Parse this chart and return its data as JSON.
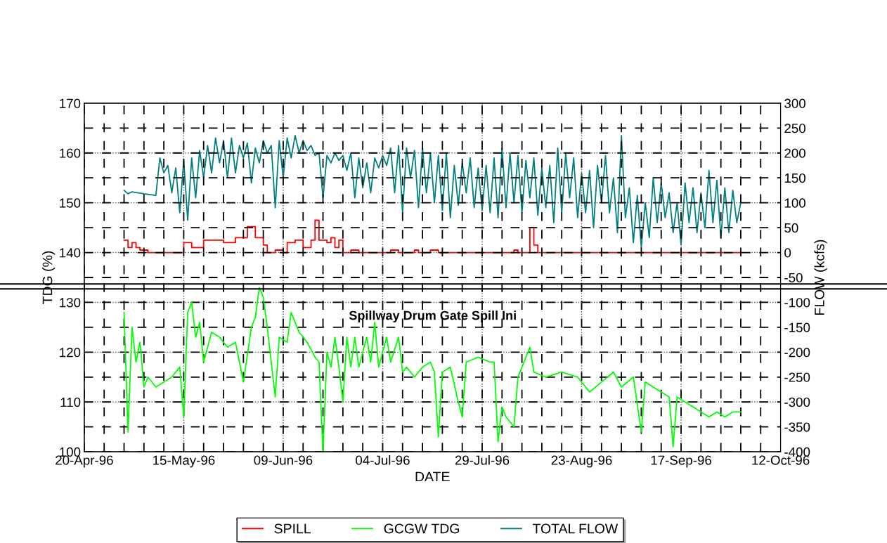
{
  "chart_data": {
    "type": "line",
    "xlabel": "DATE",
    "ylabel": "TDG (%)",
    "y2label": "FLOW (kcfs)",
    "xlim": [
      "1996-04-20",
      "1996-10-12"
    ],
    "xticks": [
      {
        "value": "1996-04-20",
        "label": "20-Apr-96"
      },
      {
        "value": "1996-05-15",
        "label": "15-May-96"
      },
      {
        "value": "1996-06-09",
        "label": "09-Jun-96"
      },
      {
        "value": "1996-07-04",
        "label": "04-Jul-96"
      },
      {
        "value": "1996-07-29",
        "label": "29-Jul-96"
      },
      {
        "value": "1996-08-23",
        "label": "23-Aug-96"
      },
      {
        "value": "1996-09-17",
        "label": "17-Sep-96"
      },
      {
        "value": "1996-10-12",
        "label": "12-Oct-96"
      }
    ],
    "ylim": [
      100,
      170
    ],
    "yticks": [
      100,
      110,
      120,
      130,
      140,
      150,
      160,
      170
    ],
    "y2lim": [
      -400,
      300
    ],
    "y2ticks": [
      -400,
      -350,
      -300,
      -250,
      -200,
      -150,
      -100,
      -50,
      0,
      50,
      100,
      150,
      200,
      250,
      300
    ],
    "grid": true,
    "legend": "bottom",
    "annotations": [
      "Spillway Drum Gate Spill Ini"
    ],
    "ref_lines": [
      {
        "axis": "y",
        "value": 133.7,
        "color": "#000000"
      },
      {
        "axis": "y",
        "value": 132.7,
        "color": "#000000"
      }
    ],
    "series": [
      {
        "name": "SPILL",
        "color": "#ff0000",
        "axis": "y2",
        "type": "step",
        "x": [
          "1996-04-30",
          "1996-05-01",
          "1996-05-02",
          "1996-05-03",
          "1996-05-04",
          "1996-05-05",
          "1996-05-06",
          "1996-05-14",
          "1996-05-15",
          "1996-05-17",
          "1996-05-20",
          "1996-05-25",
          "1996-05-28",
          "1996-05-31",
          "1996-06-02",
          "1996-06-04",
          "1996-06-05",
          "1996-06-07",
          "1996-06-09",
          "1996-06-10",
          "1996-06-12",
          "1996-06-14",
          "1996-06-16",
          "1996-06-17",
          "1996-06-18",
          "1996-06-20",
          "1996-06-21",
          "1996-06-22",
          "1996-06-23",
          "1996-06-24",
          "1996-06-26",
          "1996-06-28",
          "1996-07-06",
          "1996-07-08",
          "1996-07-12",
          "1996-07-13",
          "1996-07-16",
          "1996-07-18",
          "1996-08-06",
          "1996-08-07",
          "1996-08-10",
          "1996-08-11",
          "1996-08-12",
          "1996-10-02"
        ],
        "values": [
          25,
          10,
          20,
          10,
          5,
          5,
          0,
          0,
          20,
          10,
          25,
          20,
          30,
          52,
          30,
          15,
          0,
          5,
          0,
          20,
          25,
          10,
          25,
          65,
          25,
          20,
          30,
          10,
          25,
          0,
          5,
          0,
          5,
          0,
          5,
          0,
          5,
          0,
          5,
          0,
          50,
          15,
          0,
          0
        ]
      },
      {
        "name": "GCGW TDG",
        "color": "#00ff00",
        "axis": "y",
        "x": [
          "1996-04-30",
          "1996-05-01",
          "1996-05-02",
          "1996-05-03",
          "1996-05-04",
          "1996-05-05",
          "1996-05-06",
          "1996-05-08",
          "1996-05-12",
          "1996-05-14",
          "1996-05-15",
          "1996-05-16",
          "1996-05-17",
          "1996-05-18",
          "1996-05-19",
          "1996-05-20",
          "1996-05-22",
          "1996-05-24",
          "1996-05-26",
          "1996-05-28",
          "1996-05-30",
          "1996-06-01",
          "1996-06-02",
          "1996-06-03",
          "1996-06-04",
          "1996-06-05",
          "1996-06-06",
          "1996-06-07",
          "1996-06-08",
          "1996-06-10",
          "1996-06-11",
          "1996-06-12",
          "1996-06-13",
          "1996-06-15",
          "1996-06-17",
          "1996-06-18",
          "1996-06-19",
          "1996-06-20",
          "1996-06-21",
          "1996-06-22",
          "1996-06-23",
          "1996-06-24",
          "1996-06-25",
          "1996-06-26",
          "1996-06-27",
          "1996-06-28",
          "1996-06-30",
          "1996-07-01",
          "1996-07-02",
          "1996-07-03",
          "1996-07-05",
          "1996-07-06",
          "1996-07-08",
          "1996-07-09",
          "1996-07-10",
          "1996-07-12",
          "1996-07-14",
          "1996-07-16",
          "1996-07-17",
          "1996-07-18",
          "1996-07-19",
          "1996-07-21",
          "1996-07-23",
          "1996-07-24",
          "1996-07-25",
          "1996-07-28",
          "1996-07-31",
          "1996-08-01",
          "1996-08-02",
          "1996-08-03",
          "1996-08-04",
          "1996-08-06",
          "1996-08-07",
          "1996-08-10",
          "1996-08-11",
          "1996-08-14",
          "1996-08-18",
          "1996-08-22",
          "1996-08-25",
          "1996-08-28",
          "1996-08-31",
          "1996-09-02",
          "1996-09-05",
          "1996-09-07",
          "1996-09-08",
          "1996-09-10",
          "1996-09-12",
          "1996-09-14",
          "1996-09-15",
          "1996-09-16",
          "1996-09-18",
          "1996-09-20",
          "1996-09-22",
          "1996-09-24",
          "1996-09-26",
          "1996-09-28",
          "1996-09-30",
          "1996-10-02"
        ],
        "values": [
          128,
          104,
          125,
          118,
          122,
          113,
          115,
          113,
          115,
          117,
          107,
          128,
          130,
          123,
          126,
          118,
          124,
          123,
          121,
          122,
          114,
          125,
          127,
          133,
          131,
          125,
          118,
          111,
          123,
          122,
          128,
          126,
          124,
          122,
          119,
          118,
          100,
          120,
          117,
          123,
          117,
          110,
          123,
          117,
          123,
          117,
          123,
          118,
          126,
          117,
          123,
          118,
          123,
          116,
          117,
          115,
          117,
          118,
          116,
          103,
          116,
          117,
          110,
          107,
          118,
          119,
          118,
          118,
          102,
          109,
          107,
          105,
          115,
          121,
          116,
          115,
          116,
          115,
          112,
          114,
          116,
          113,
          115,
          104,
          114,
          113,
          112,
          111,
          101,
          111,
          110,
          109,
          108,
          107,
          108,
          107,
          108,
          108
        ]
      },
      {
        "name": "TOTAL FLOW",
        "color": "#008080",
        "axis": "y2",
        "x": [
          "1996-04-30",
          "1996-05-01",
          "1996-05-02",
          "1996-05-05",
          "1996-05-08",
          "1996-05-09",
          "1996-05-10",
          "1996-05-11",
          "1996-05-12",
          "1996-05-13",
          "1996-05-14",
          "1996-05-15",
          "1996-05-16",
          "1996-05-17",
          "1996-05-18",
          "1996-05-19",
          "1996-05-20",
          "1996-05-21",
          "1996-05-22",
          "1996-05-23",
          "1996-05-24",
          "1996-05-25",
          "1996-05-26",
          "1996-05-27",
          "1996-05-28",
          "1996-05-29",
          "1996-05-30",
          "1996-05-31",
          "1996-06-01",
          "1996-06-02",
          "1996-06-03",
          "1996-06-04",
          "1996-06-05",
          "1996-06-06",
          "1996-06-07",
          "1996-06-08",
          "1996-06-09",
          "1996-06-10",
          "1996-06-11",
          "1996-06-12",
          "1996-06-13",
          "1996-06-14",
          "1996-06-15",
          "1996-06-16",
          "1996-06-17",
          "1996-06-18",
          "1996-06-19",
          "1996-06-20",
          "1996-06-21",
          "1996-06-22",
          "1996-06-23",
          "1996-06-24",
          "1996-06-25",
          "1996-06-26",
          "1996-06-27",
          "1996-06-28",
          "1996-06-29",
          "1996-06-30",
          "1996-07-01",
          "1996-07-02",
          "1996-07-03",
          "1996-07-04",
          "1996-07-05",
          "1996-07-06",
          "1996-07-07",
          "1996-07-08",
          "1996-07-09",
          "1996-07-10",
          "1996-07-11",
          "1996-07-12",
          "1996-07-13",
          "1996-07-14",
          "1996-07-15",
          "1996-07-16",
          "1996-07-17",
          "1996-07-18",
          "1996-07-19",
          "1996-07-20",
          "1996-07-21",
          "1996-07-22",
          "1996-07-23",
          "1996-07-24",
          "1996-07-25",
          "1996-07-26",
          "1996-07-27",
          "1996-07-28",
          "1996-07-29",
          "1996-07-30",
          "1996-07-31",
          "1996-08-01",
          "1996-08-02",
          "1996-08-03",
          "1996-08-04",
          "1996-08-05",
          "1996-08-06",
          "1996-08-07",
          "1996-08-08",
          "1996-08-09",
          "1996-08-10",
          "1996-08-11",
          "1996-08-12",
          "1996-08-13",
          "1996-08-14",
          "1996-08-15",
          "1996-08-16",
          "1996-08-17",
          "1996-08-18",
          "1996-08-19",
          "1996-08-20",
          "1996-08-21",
          "1996-08-22",
          "1996-08-23",
          "1996-08-24",
          "1996-08-25",
          "1996-08-26",
          "1996-08-27",
          "1996-08-28",
          "1996-08-29",
          "1996-08-30",
          "1996-08-31",
          "1996-09-01",
          "1996-09-02",
          "1996-09-03",
          "1996-09-04",
          "1996-09-05",
          "1996-09-06",
          "1996-09-07",
          "1996-09-08",
          "1996-09-09",
          "1996-09-10",
          "1996-09-11",
          "1996-09-12",
          "1996-09-13",
          "1996-09-14",
          "1996-09-15",
          "1996-09-16",
          "1996-09-17",
          "1996-09-18",
          "1996-09-19",
          "1996-09-20",
          "1996-09-21",
          "1996-09-22",
          "1996-09-23",
          "1996-09-24",
          "1996-09-25",
          "1996-09-26",
          "1996-09-27",
          "1996-09-28",
          "1996-09-29",
          "1996-09-30",
          "1996-10-01",
          "1996-10-02"
        ],
        "values": [
          125,
          118,
          122,
          118,
          115,
          190,
          160,
          175,
          120,
          170,
          80,
          185,
          65,
          190,
          110,
          205,
          150,
          215,
          160,
          230,
          180,
          225,
          150,
          230,
          160,
          215,
          190,
          220,
          140,
          210,
          180,
          225,
          200,
          215,
          90,
          225,
          150,
          230,
          190,
          235,
          200,
          225,
          205,
          215,
          195,
          200,
          110,
          195,
          180,
          200,
          185,
          195,
          165,
          200,
          110,
          190,
          130,
          180,
          120,
          190,
          170,
          195,
          175,
          210,
          120,
          215,
          80,
          210,
          150,
          205,
          90,
          210,
          120,
          200,
          100,
          195,
          85,
          200,
          70,
          175,
          95,
          180,
          120,
          190,
          90,
          170,
          85,
          175,
          80,
          190,
          70,
          210,
          90,
          200,
          100,
          195,
          80,
          185,
          110,
          190,
          75,
          170,
          90,
          175,
          60,
          210,
          80,
          200,
          110,
          190,
          70,
          160,
          80,
          165,
          50,
          175,
          100,
          195,
          80,
          150,
          40,
          235,
          70,
          130,
          20,
          115,
          10,
          100,
          30,
          150,
          60,
          140,
          70,
          120,
          40,
          100,
          15,
          140,
          60,
          130,
          40,
          120,
          50,
          165,
          60,
          145,
          30,
          130,
          40,
          125,
          60,
          100
        ]
      }
    ]
  }
}
